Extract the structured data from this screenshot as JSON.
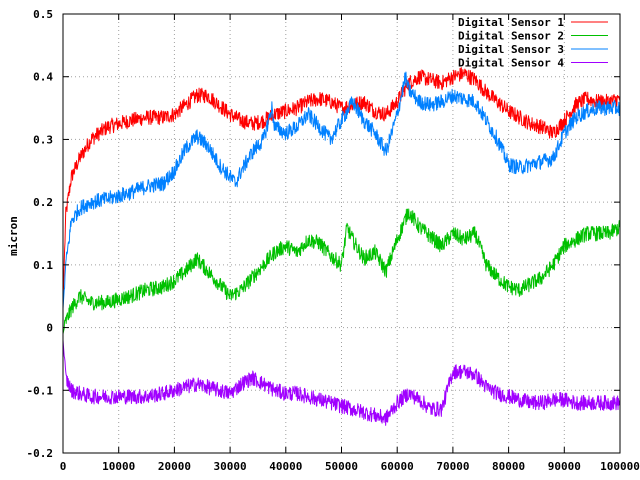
{
  "chart_data": {
    "type": "line",
    "title": "",
    "xlabel": "",
    "ylabel": "micron",
    "xlim": [
      0,
      100000
    ],
    "ylim": [
      -0.2,
      0.5
    ],
    "xticks": [
      0,
      10000,
      20000,
      30000,
      40000,
      50000,
      60000,
      70000,
      80000,
      90000,
      100000
    ],
    "yticks": [
      -0.2,
      -0.1,
      0,
      0.1,
      0.2,
      0.3,
      0.4,
      0.5
    ],
    "xtick_labels": [
      "0",
      "10000",
      "20000",
      "30000",
      "40000",
      "50000",
      "60000",
      "70000",
      "80000",
      "90000",
      "100000"
    ],
    "ytick_labels": [
      "-0.2",
      "-0.1",
      "0",
      "0.1",
      "0.2",
      "0.3",
      "0.4",
      "0.5"
    ],
    "grid": true,
    "legend_position": "top-right",
    "series": [
      {
        "name": "Digital Sensor 1",
        "color": "#ff0000",
        "x": [
          0,
          500,
          1500,
          3000,
          5000,
          8000,
          10000,
          12000,
          15000,
          18000,
          20000,
          22000,
          24000,
          26000,
          28000,
          30000,
          32000,
          34000,
          36000,
          38000,
          40000,
          42000,
          44000,
          46000,
          48000,
          50000,
          52000,
          54000,
          56000,
          58000,
          60000,
          62000,
          64000,
          66000,
          68000,
          70000,
          72000,
          74000,
          76000,
          78000,
          80000,
          82000,
          84000,
          86000,
          88000,
          90000,
          92000,
          94000,
          96000,
          98000,
          100000
        ],
        "y": [
          0.04,
          0.18,
          0.24,
          0.27,
          0.3,
          0.32,
          0.325,
          0.33,
          0.335,
          0.335,
          0.34,
          0.355,
          0.37,
          0.37,
          0.355,
          0.34,
          0.33,
          0.325,
          0.33,
          0.34,
          0.345,
          0.35,
          0.36,
          0.365,
          0.36,
          0.35,
          0.355,
          0.36,
          0.345,
          0.34,
          0.36,
          0.39,
          0.4,
          0.395,
          0.39,
          0.4,
          0.405,
          0.395,
          0.375,
          0.36,
          0.345,
          0.335,
          0.325,
          0.32,
          0.31,
          0.33,
          0.355,
          0.365,
          0.36,
          0.36,
          0.365
        ]
      },
      {
        "name": "Digital Sensor 2",
        "color": "#00c000",
        "x": [
          0,
          500,
          1500,
          3000,
          5000,
          8000,
          10000,
          12000,
          15000,
          18000,
          20000,
          22000,
          24000,
          26000,
          28000,
          30000,
          32000,
          34000,
          36000,
          38000,
          40000,
          42000,
          44000,
          46000,
          48000,
          50000,
          51000,
          52000,
          54000,
          56000,
          58000,
          60000,
          62000,
          64000,
          66000,
          68000,
          70000,
          72000,
          74000,
          76000,
          78000,
          80000,
          82000,
          84000,
          86000,
          88000,
          90000,
          92000,
          94000,
          96000,
          98000,
          100000
        ],
        "y": [
          -0.01,
          0.01,
          0.03,
          0.05,
          0.04,
          0.04,
          0.045,
          0.05,
          0.06,
          0.065,
          0.075,
          0.09,
          0.11,
          0.09,
          0.07,
          0.05,
          0.06,
          0.08,
          0.1,
          0.12,
          0.13,
          0.12,
          0.14,
          0.135,
          0.115,
          0.1,
          0.16,
          0.14,
          0.11,
          0.12,
          0.09,
          0.14,
          0.185,
          0.16,
          0.145,
          0.13,
          0.15,
          0.14,
          0.15,
          0.1,
          0.08,
          0.065,
          0.06,
          0.07,
          0.08,
          0.1,
          0.13,
          0.14,
          0.15,
          0.15,
          0.15,
          0.16
        ]
      },
      {
        "name": "Digital Sensor 3",
        "color": "#0080ff",
        "x": [
          0,
          500,
          1500,
          3000,
          5000,
          8000,
          10000,
          12000,
          15000,
          18000,
          20000,
          22000,
          24000,
          26000,
          28000,
          30000,
          31000,
          32000,
          34000,
          36000,
          37500,
          38000,
          40000,
          42000,
          44000,
          46000,
          48000,
          50000,
          52000,
          54000,
          56000,
          58000,
          60000,
          61500,
          62000,
          64000,
          66000,
          68000,
          70000,
          72000,
          74000,
          76000,
          78000,
          80000,
          82000,
          84000,
          86000,
          88000,
          90000,
          92000,
          94000,
          96000,
          98000,
          100000
        ],
        "y": [
          0.03,
          0.1,
          0.17,
          0.19,
          0.2,
          0.205,
          0.21,
          0.215,
          0.225,
          0.23,
          0.25,
          0.285,
          0.305,
          0.29,
          0.26,
          0.24,
          0.23,
          0.25,
          0.28,
          0.3,
          0.35,
          0.32,
          0.31,
          0.32,
          0.34,
          0.32,
          0.3,
          0.33,
          0.36,
          0.33,
          0.31,
          0.28,
          0.34,
          0.4,
          0.38,
          0.36,
          0.355,
          0.36,
          0.37,
          0.365,
          0.36,
          0.33,
          0.3,
          0.26,
          0.255,
          0.26,
          0.265,
          0.27,
          0.31,
          0.335,
          0.345,
          0.35,
          0.35,
          0.35
        ]
      },
      {
        "name": "Digital Sensor 4",
        "color": "#a000ff",
        "x": [
          0,
          500,
          1500,
          3000,
          5000,
          8000,
          10000,
          12000,
          15000,
          18000,
          20000,
          22000,
          24000,
          26000,
          28000,
          30000,
          32000,
          34000,
          36000,
          38000,
          40000,
          42000,
          44000,
          46000,
          48000,
          50000,
          52000,
          54000,
          56000,
          58000,
          60000,
          62000,
          64000,
          66000,
          68000,
          70000,
          72000,
          74000,
          76000,
          78000,
          80000,
          82000,
          84000,
          86000,
          88000,
          90000,
          92000,
          94000,
          96000,
          98000,
          100000
        ],
        "y": [
          -0.02,
          -0.08,
          -0.1,
          -0.105,
          -0.11,
          -0.11,
          -0.11,
          -0.11,
          -0.11,
          -0.105,
          -0.1,
          -0.095,
          -0.09,
          -0.095,
          -0.1,
          -0.105,
          -0.09,
          -0.08,
          -0.09,
          -0.1,
          -0.105,
          -0.105,
          -0.11,
          -0.115,
          -0.12,
          -0.125,
          -0.13,
          -0.135,
          -0.14,
          -0.145,
          -0.12,
          -0.105,
          -0.115,
          -0.13,
          -0.13,
          -0.07,
          -0.07,
          -0.075,
          -0.095,
          -0.105,
          -0.11,
          -0.115,
          -0.12,
          -0.12,
          -0.115,
          -0.115,
          -0.12,
          -0.12,
          -0.12,
          -0.12,
          -0.12
        ]
      }
    ]
  }
}
